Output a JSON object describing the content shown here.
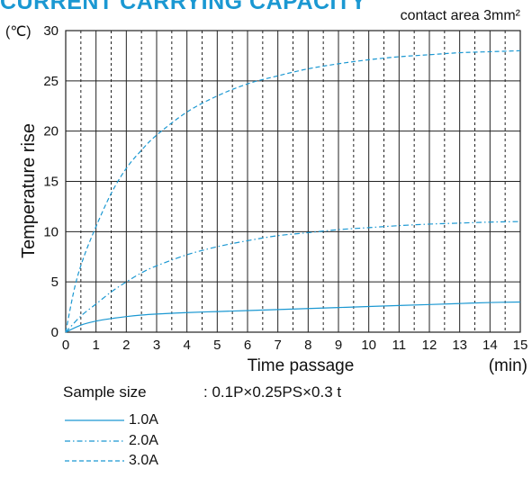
{
  "header": {
    "title": "CURRENT CARRYING CAPACITY"
  },
  "chart_data": {
    "type": "line",
    "title": "CURRENT CARRYING CAPACITY",
    "subtitle": "contact area 3mm²",
    "xlabel": "Time passage",
    "xunit": "(min)",
    "ylabel": "Temperature rise",
    "yunit": "(℃)",
    "xlim": [
      0,
      15
    ],
    "ylim": [
      0,
      30
    ],
    "xticks": [
      "0",
      "1",
      "2",
      "3",
      "4",
      "5",
      "6",
      "7",
      "8",
      "9",
      "10",
      "11",
      "12",
      "13",
      "14",
      "15"
    ],
    "yticks": [
      "0",
      "5",
      "10",
      "15",
      "20",
      "25",
      "30"
    ],
    "grid": true,
    "colors": {
      "line": "#1b98d2",
      "title": "#1b98d2"
    },
    "series": [
      {
        "name": "1.0A",
        "style": "solid",
        "x": [
          0,
          0.5,
          1,
          1.5,
          2,
          2.5,
          3,
          4,
          5,
          6,
          7,
          8,
          9,
          10,
          11,
          12,
          13,
          14,
          15
        ],
        "y": [
          0,
          0.7,
          1.1,
          1.35,
          1.55,
          1.7,
          1.8,
          1.95,
          2.05,
          2.15,
          2.25,
          2.35,
          2.45,
          2.55,
          2.65,
          2.75,
          2.85,
          2.95,
          3.0
        ]
      },
      {
        "name": "2.0A",
        "style": "dashdot",
        "x": [
          0,
          0.5,
          1,
          1.5,
          2,
          2.5,
          3,
          4,
          5,
          6,
          7,
          8,
          9,
          10,
          11,
          12,
          13,
          14,
          15
        ],
        "y": [
          0,
          1.6,
          2.8,
          4.0,
          5.0,
          5.9,
          6.6,
          7.7,
          8.5,
          9.1,
          9.6,
          9.9,
          10.2,
          10.4,
          10.6,
          10.75,
          10.85,
          10.95,
          11.0
        ]
      },
      {
        "name": "3.0A",
        "style": "dashed",
        "x": [
          0,
          0.3,
          0.6,
          1,
          1.5,
          2,
          2.5,
          3,
          4,
          5,
          6,
          7,
          8,
          9,
          10,
          11,
          12,
          13,
          14,
          15
        ],
        "y": [
          0,
          4.5,
          7.5,
          10.5,
          13.8,
          16.3,
          18.1,
          19.6,
          21.9,
          23.5,
          24.7,
          25.5,
          26.2,
          26.7,
          27.1,
          27.4,
          27.6,
          27.8,
          27.9,
          28.0
        ]
      }
    ]
  },
  "sample": {
    "label": "Sample size",
    "value": ": 0.1P×0.25PS×0.3 t"
  }
}
